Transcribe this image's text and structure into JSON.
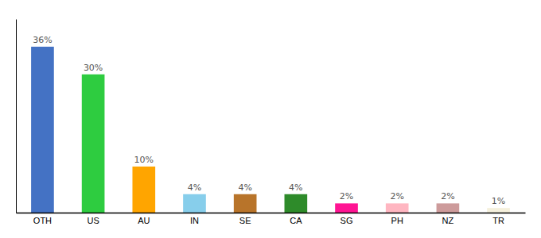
{
  "chart_data": {
    "type": "bar",
    "categories": [
      "OTH",
      "US",
      "AU",
      "IN",
      "SE",
      "CA",
      "SG",
      "PH",
      "NZ",
      "TR"
    ],
    "values": [
      36,
      30,
      10,
      4,
      4,
      4,
      2,
      2,
      2,
      1
    ],
    "value_labels": [
      "36%",
      "30%",
      "10%",
      "4%",
      "4%",
      "4%",
      "2%",
      "2%",
      "2%",
      "1%"
    ],
    "colors": [
      "#4472C4",
      "#2ECC40",
      "#FFA500",
      "#87CEEB",
      "#B8742A",
      "#2E8B2A",
      "#FF1493",
      "#FFB6C1",
      "#CD9B9B",
      "#F5F0DC"
    ],
    "ylim": [
      0,
      42
    ],
    "data_labels": true,
    "tick_labels": "x",
    "grid": false
  }
}
